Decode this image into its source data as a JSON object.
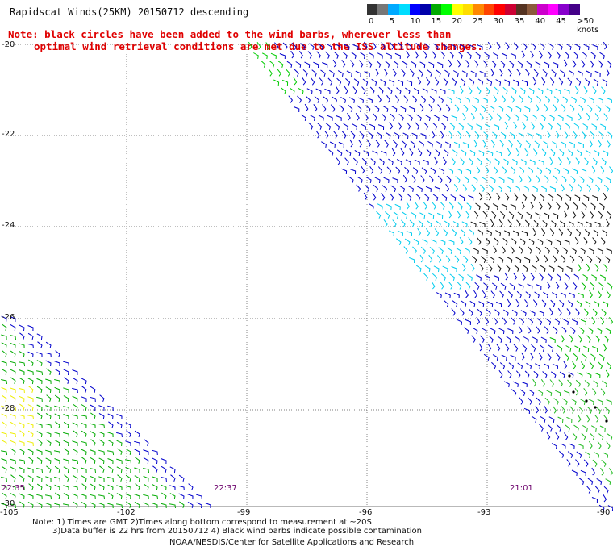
{
  "title": "Rapidscat Winds(25KM) 20150712 descending",
  "note": {
    "line1": "Note: black circles have been added to the wind barbs, wherever less than",
    "line2": "optimal wind retrieval conditions are met due to the ISS altitude changes."
  },
  "legend": {
    "ticks": [
      "0",
      "5",
      "10",
      "15",
      "20",
      "25",
      "30",
      "35",
      "40",
      "45",
      ">50 knots"
    ],
    "colors": [
      "#111111",
      "#555555",
      "#999999",
      "#00ccff",
      "#00a0ff",
      "#0000ff",
      "#00cc00",
      "#00ff00",
      "#ffff00",
      "#ffcc00",
      "#ff8800",
      "#ff0000",
      "#ff0066",
      "#cc0000",
      "#663333",
      "#9a6a4a",
      "#cc00cc",
      "#9900ff",
      "#5500aa",
      "#330066"
    ]
  },
  "axes": {
    "lat_labels": [
      "-20",
      "-22",
      "-24",
      "-26",
      "-28",
      "-30"
    ],
    "lon_labels": [
      "-105",
      "-102",
      "-99",
      "-96",
      "-93",
      "-90"
    ]
  },
  "times": {
    "left": "22:35",
    "middle": "22:37",
    "right": "21:01"
  },
  "footer": {
    "line1": "Note: 1) Times are GMT 2)Times along bottom correspond to measurement at ~20S",
    "line2": "3)Data buffer is 22 hrs from 20150712 4) Black wind barbs indicate possible contamination",
    "line3": "NOAA/NESDIS/Center for Satellite Applications and Research"
  }
}
